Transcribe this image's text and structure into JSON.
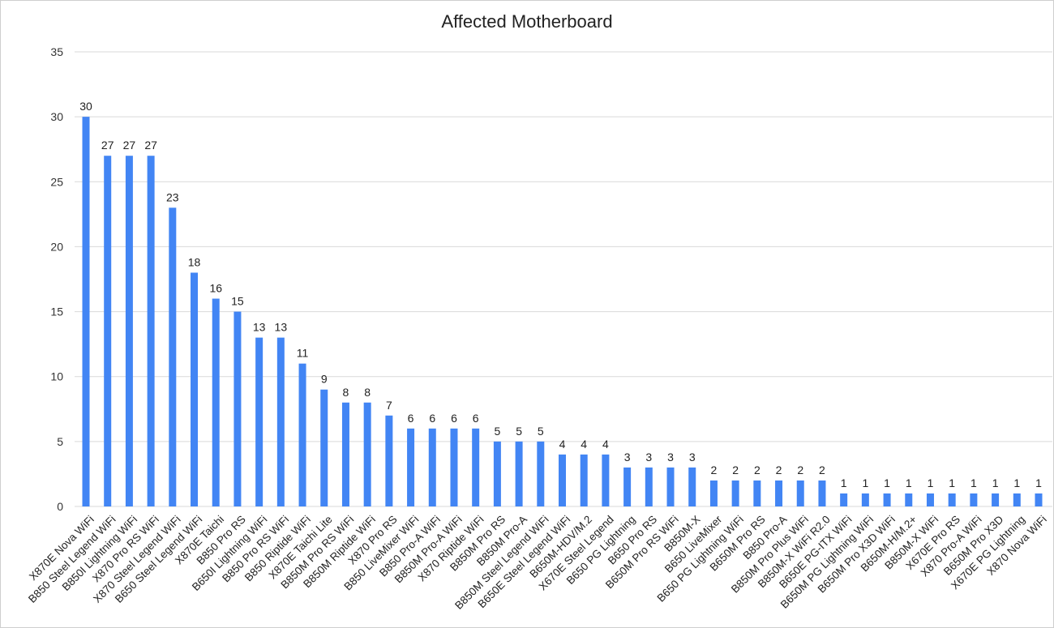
{
  "chart_data": {
    "type": "bar",
    "title": "Affected Motherboard",
    "xlabel": "",
    "ylabel": "",
    "ylim": [
      0,
      35
    ],
    "yticks": [
      0,
      5,
      10,
      15,
      20,
      25,
      30,
      35
    ],
    "grid": true,
    "legend": "none",
    "bar_color": "#4285F4",
    "categories": [
      "X870E Nova WiFi",
      "B850 Steel Legend WiFi",
      "B850I Lightning WiFi",
      "X870 Pro RS WiFi",
      "X870 Steel Legend WiFi",
      "B650 Steel Legend WiFi",
      "X870E Taichi",
      "B850 Pro RS",
      "B650I Lightning WiFi",
      "B850 Pro RS WiFi",
      "B850 Riptide WiFi",
      "X870E Taichi Lite",
      "B850M Pro RS WiFi",
      "B850M Riptide WiFi",
      "X870 Pro RS",
      "B850 LiveMixer WiFi",
      "B850 Pro-A WiFi",
      "B850M Pro-A WiFi",
      "X870 Riptide WiFi",
      "B850M Pro RS",
      "B850M Pro-A",
      "B850M Steel Legend WiFi",
      "B650E Steel Legend WiFi",
      "B650M-HDV/M.2",
      "X670E Steel Legend",
      "B650 PG Lightning",
      "B650 Pro RS",
      "B650M Pro RS WiFi",
      "B850M-X",
      "B650 LiveMixer",
      "B650 PG Lightning WiFi",
      "B650M Pro RS",
      "B850 Pro-A",
      "B850M Pro Plus WiFi",
      "B850M-X WiFi R2.0",
      "B650E PG-ITX WiFi",
      "B650M PG Lightning WiFi",
      "B650M Pro X3D WiFi",
      "B650M-H/M.2+",
      "B850M-X WiFi",
      "X670E Pro RS",
      "X870 Pro-A WiFi",
      "B650M Pro X3D",
      "X670E PG Lightning",
      "X870 Nova WiFi"
    ],
    "values": [
      30,
      27,
      27,
      27,
      23,
      18,
      16,
      15,
      13,
      13,
      11,
      9,
      8,
      8,
      7,
      6,
      6,
      6,
      6,
      5,
      5,
      5,
      4,
      4,
      4,
      3,
      3,
      3,
      3,
      2,
      2,
      2,
      2,
      2,
      2,
      1,
      1,
      1,
      1,
      1,
      1,
      1,
      1,
      1,
      1
    ]
  }
}
